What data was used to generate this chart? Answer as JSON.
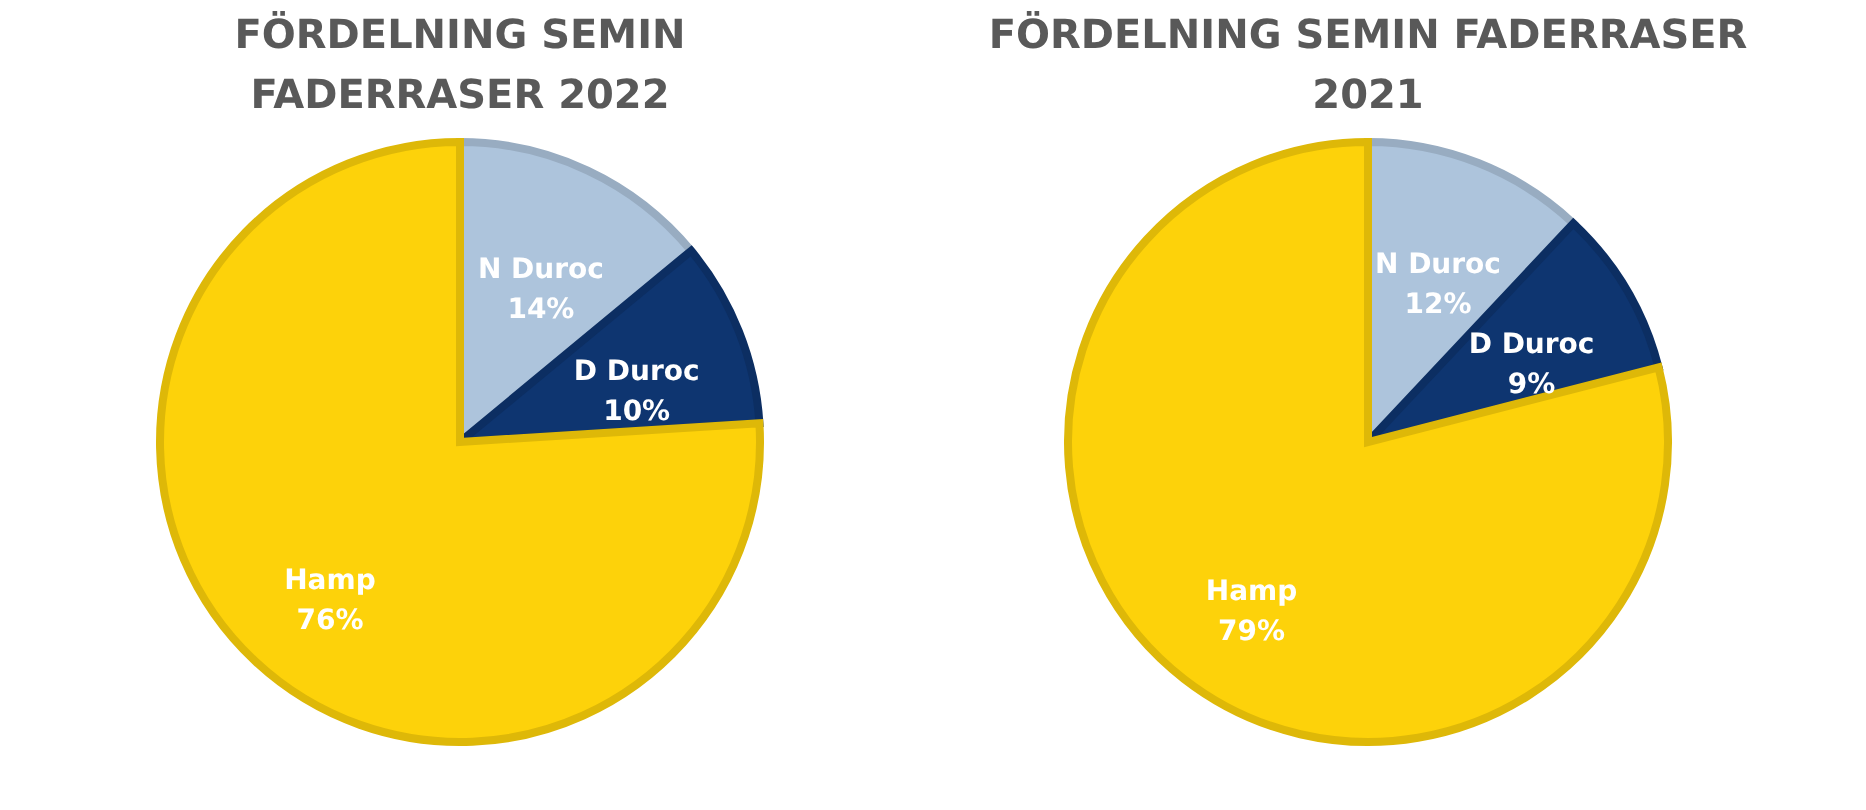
{
  "chart_data": [
    {
      "type": "pie",
      "title": "FÖRDELNING SEMIN\nFADERRASER 2022",
      "categories": [
        "N Duroc",
        "D Duroc",
        "Hamp"
      ],
      "values": [
        14,
        10,
        76
      ],
      "colors": [
        "#adc4dc",
        "#0e3570",
        "#fdd20a"
      ],
      "data_labels": true,
      "value_labels": [
        "14%",
        "10%",
        "76%"
      ],
      "legend": false
    },
    {
      "type": "pie",
      "title": "FÖRDELNING SEMIN FADERRASER\n2021",
      "categories": [
        "N Duroc",
        "D Duroc",
        "Hamp"
      ],
      "values": [
        12,
        9,
        79
      ],
      "colors": [
        "#adc4dc",
        "#0e3570",
        "#fdd20a"
      ],
      "data_labels": true,
      "value_labels": [
        "12%",
        "9%",
        "79%"
      ],
      "legend": false
    }
  ]
}
